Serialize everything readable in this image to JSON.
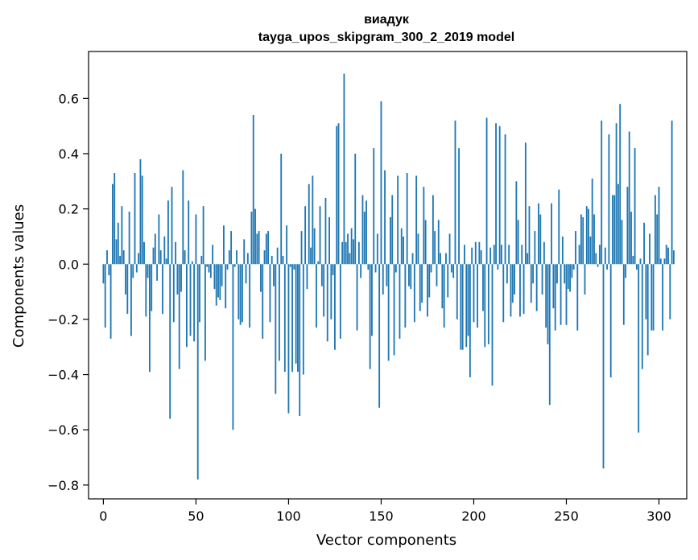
{
  "chart_data": {
    "type": "bar",
    "title_line1": "виадук",
    "title_line2": "tayga_upos_skipgram_300_2_2019 model",
    "xlabel": "Vector components",
    "ylabel": "Components values",
    "xlim": [
      -8,
      315
    ],
    "ylim": [
      -0.85,
      0.77
    ],
    "xticks": [
      0,
      50,
      100,
      150,
      200,
      250,
      300
    ],
    "yticks": [
      -0.8,
      -0.6,
      -0.4,
      -0.2,
      0.0,
      0.2,
      0.4,
      0.6
    ],
    "ytick_labels": [
      "−0.8",
      "−0.6",
      "−0.4",
      "−0.2",
      "0.0",
      "0.2",
      "0.4",
      "0.6"
    ],
    "bar_color": "#1f77b4",
    "values": [
      -0.07,
      -0.23,
      0.05,
      -0.04,
      -0.27,
      0.29,
      0.33,
      0.09,
      0.15,
      0.03,
      0.21,
      0.05,
      -0.11,
      -0.18,
      0.19,
      -0.26,
      -0.05,
      0.33,
      -0.03,
      0.04,
      0.38,
      0.32,
      0.08,
      -0.19,
      -0.05,
      -0.39,
      -0.17,
      0.06,
      0.11,
      -0.06,
      0.18,
      0.05,
      -0.18,
      0.1,
      0.02,
      0.23,
      -0.56,
      0.28,
      -0.21,
      0.08,
      -0.11,
      -0.38,
      -0.1,
      0.34,
      0.05,
      -0.3,
      0.23,
      -0.26,
      0.01,
      -0.28,
      0.18,
      -0.78,
      -0.21,
      0.03,
      0.21,
      -0.35,
      -0.01,
      -0.03,
      -0.05,
      0.07,
      -0.09,
      -0.15,
      -0.12,
      -0.13,
      -0.08,
      0.14,
      -0.16,
      -0.02,
      0.05,
      0.12,
      -0.6,
      -0.01,
      0.05,
      -0.2,
      -0.22,
      -0.21,
      0.09,
      -0.07,
      0.04,
      -0.23,
      0.19,
      0.54,
      0.2,
      0.11,
      0.12,
      -0.1,
      -0.27,
      0.05,
      0.11,
      0.12,
      -0.21,
      0.03,
      -0.08,
      -0.47,
      0.06,
      -0.35,
      0.4,
      0.03,
      -0.39,
      0.14,
      -0.54,
      -0.01,
      -0.39,
      -0.02,
      -0.36,
      -0.39,
      -0.55,
      0.12,
      -0.4,
      0.21,
      -0.09,
      0.29,
      0.06,
      0.32,
      0.13,
      -0.23,
      0.01,
      0.21,
      -0.08,
      -0.19,
      0.24,
      -0.28,
      0.17,
      -0.2,
      -0.04,
      -0.31,
      0.5,
      0.51,
      -0.27,
      0.08,
      0.69,
      0.08,
      0.11,
      0.04,
      0.13,
      0.09,
      0.4,
      -0.24,
      0.08,
      -0.05,
      0.25,
      0.19,
      0.23,
      -0.02,
      -0.38,
      -0.26,
      0.42,
      -0.03,
      0.11,
      -0.52,
      0.59,
      -0.11,
      0.34,
      -0.08,
      -0.35,
      0.17,
      0.25,
      -0.33,
      -0.03,
      0.32,
      -0.27,
      0.13,
      0.1,
      -0.23,
      0.33,
      -0.08,
      -0.09,
      0.04,
      -0.21,
      0.32,
      0.11,
      -0.17,
      -0.14,
      0.28,
      0.16,
      -0.19,
      -0.12,
      -0.03,
      0.25,
      0.12,
      -0.08,
      0.16,
      0.04,
      -0.16,
      -0.23,
      0.04,
      -0.12,
      0.11,
      -0.03,
      -0.05,
      0.52,
      -0.2,
      0.42,
      -0.31,
      -0.31,
      0.07,
      -0.3,
      -0.26,
      -0.41,
      0.06,
      -0.21,
      0.08,
      -0.23,
      0.08,
      0.05,
      -0.17,
      -0.3,
      0.53,
      -0.29,
      0.06,
      -0.44,
      0.07,
      0.51,
      -0.02,
      0.5,
      0.07,
      -0.21,
      0.47,
      -0.07,
      0.07,
      -0.19,
      -0.14,
      -0.11,
      0.3,
      0.16,
      -0.19,
      0.07,
      -0.18,
      0.44,
      0.04,
      0.21,
      -0.14,
      -0.07,
      0.12,
      -0.17,
      0.22,
      0.18,
      -0.11,
      0.08,
      -0.23,
      -0.29,
      -0.51,
      0.22,
      -0.16,
      -0.24,
      -0.07,
      0.27,
      -0.22,
      0.1,
      -0.07,
      -0.22,
      -0.09,
      -0.1,
      -0.05,
      -0.02,
      0.12,
      -0.24,
      0.07,
      0.18,
      0.17,
      -0.11,
      0.21,
      0.2,
      0.1,
      0.31,
      0.18,
      0.04,
      -0.01,
      0.07,
      0.52,
      -0.74,
      0.06,
      -0.02,
      0.47,
      -0.41,
      0.25,
      0.25,
      0.51,
      0.29,
      0.58,
      0.16,
      -0.22,
      -0.05,
      0.28,
      0.48,
      0.19,
      0.03,
      0.42,
      -0.02,
      -0.61,
      0.02,
      -0.38,
      0.15,
      -0.2,
      -0.33,
      0.11,
      -0.24,
      -0.24,
      0.25,
      0.18,
      0.28,
      0.02,
      -0.24,
      0.02,
      0.07,
      0.06,
      -0.2,
      0.52,
      0.05
    ]
  }
}
